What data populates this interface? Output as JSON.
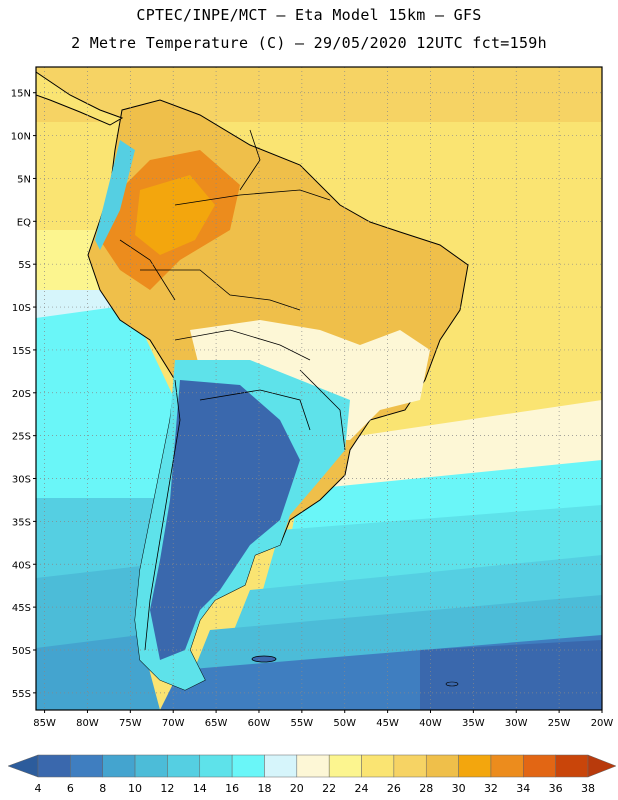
{
  "header": {
    "title_line1": "CPTEC/INPE/MCT –  Eta Model 15km – GFS",
    "title_line2": "2 Metre Temperature (C) – 29/05/2020 12UTC fct=159h"
  },
  "map": {
    "region": "South America",
    "lat_labels": [
      "15N",
      "10N",
      "5N",
      "EQ",
      "5S",
      "10S",
      "15S",
      "20S",
      "25S",
      "30S",
      "35S",
      "40S",
      "45S",
      "50S",
      "55S"
    ],
    "lon_labels": [
      "85W",
      "80W",
      "75W",
      "70W",
      "65W",
      "60W",
      "55W",
      "50W",
      "45W",
      "40W",
      "35W",
      "30W",
      "25W",
      "20W"
    ],
    "lat_range": [
      18,
      -57
    ],
    "lon_range": [
      -86,
      -20
    ]
  },
  "colorbar": {
    "labels": [
      "4",
      "6",
      "8",
      "10",
      "12",
      "14",
      "16",
      "18",
      "20",
      "22",
      "24",
      "26",
      "28",
      "30",
      "32",
      "34",
      "36",
      "38"
    ],
    "colors": [
      "#3a68ad",
      "#3f7ec0",
      "#44a4cf",
      "#4cbcd8",
      "#55cfe2",
      "#5ee2ea",
      "#6af6f8",
      "#d6f5fb",
      "#fdf7d6",
      "#fcf58f",
      "#fae472",
      "#f6d364",
      "#efbf4a",
      "#f3a60d",
      "#ec8c1d",
      "#e26614",
      "#c9450a"
    ],
    "low_color": "#2c5c9c",
    "high_color": "#b83a0c"
  }
}
